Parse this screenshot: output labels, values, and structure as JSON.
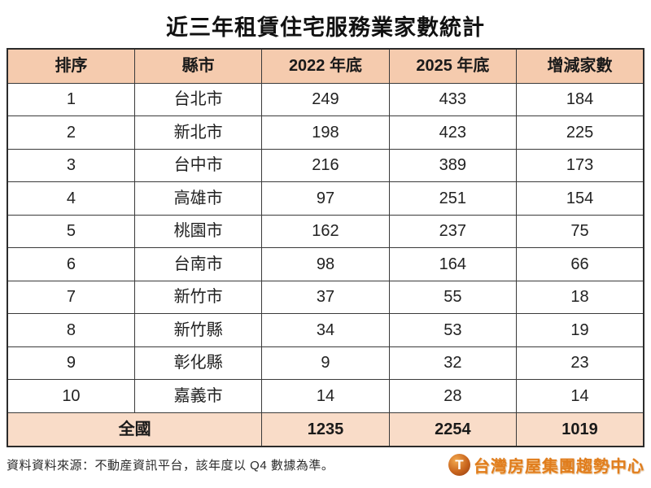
{
  "title": "近三年租賃住宅服務業家數統計",
  "chart_data": {
    "type": "table",
    "title": "近三年租賃住宅服務業家數統計",
    "columns": [
      "排序",
      "縣市",
      "2022 年底",
      "2025 年底",
      "增減家數"
    ],
    "rows": [
      [
        "1",
        "台北市",
        "249",
        "433",
        "184"
      ],
      [
        "2",
        "新北市",
        "198",
        "423",
        "225"
      ],
      [
        "3",
        "台中市",
        "216",
        "389",
        "173"
      ],
      [
        "4",
        "高雄市",
        "97",
        "251",
        "154"
      ],
      [
        "5",
        "桃園市",
        "162",
        "237",
        "75"
      ],
      [
        "6",
        "台南市",
        "98",
        "164",
        "66"
      ],
      [
        "7",
        "新竹市",
        "37",
        "55",
        "18"
      ],
      [
        "8",
        "新竹縣",
        "34",
        "53",
        "19"
      ],
      [
        "9",
        "彰化縣",
        "9",
        "32",
        "23"
      ],
      [
        "10",
        "嘉義市",
        "14",
        "28",
        "14"
      ]
    ],
    "total_row": [
      "全國",
      "1235",
      "2254",
      "1019"
    ],
    "source": "資料資料來源：不動産資訊平台，該年度以 Q4 數據為準。"
  },
  "footer": {
    "source_note": "資料資料來源：不動産資訊平台，該年度以 Q4 數據為準。",
    "logo_icon": "T",
    "logo_text": "台灣房屋集團趨勢中心"
  },
  "colors": {
    "header_bg": "#f5cbae",
    "total_row_bg": "#f9dcc8",
    "border": "#3a3a3a",
    "logo_orange": "#e07d1d",
    "text": "#222222"
  }
}
